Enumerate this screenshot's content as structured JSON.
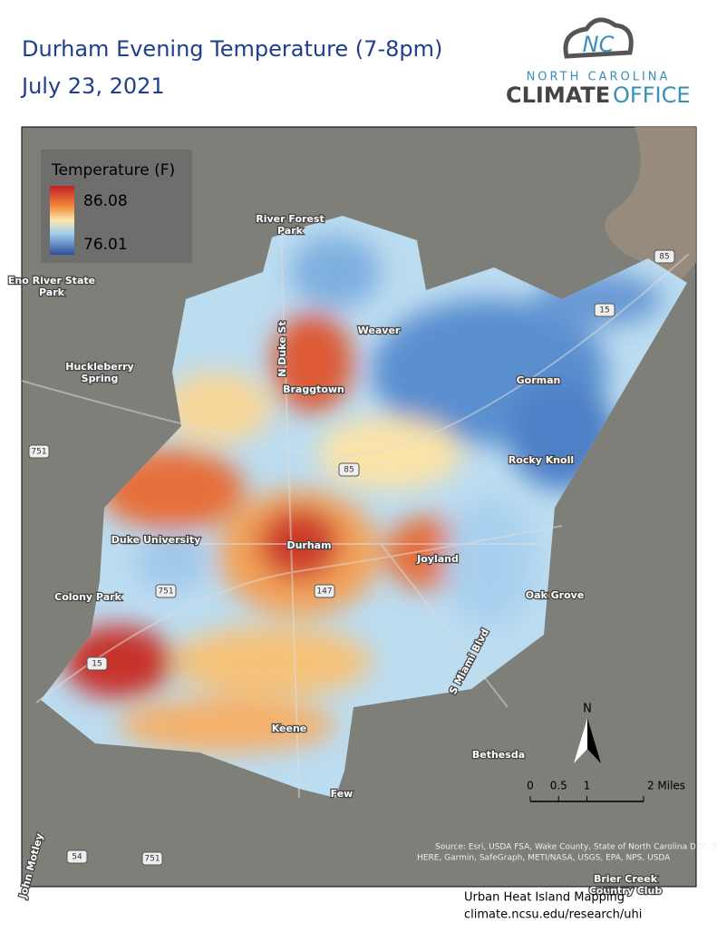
{
  "header": {
    "title": "Durham Evening Temperature (7-8pm)",
    "subtitle": "July 23, 2021"
  },
  "logo": {
    "mark": "NC",
    "line1": "NORTH CAROLINA",
    "bold": "CLIMATE",
    "light": "OFFICE"
  },
  "legend": {
    "title": "Temperature (F)",
    "max": 86.08,
    "min": 76.01
  },
  "places": [
    {
      "lines": [
        "River Forest",
        "Park"
      ]
    },
    {
      "lines": [
        "Eno River State",
        "Park"
      ]
    },
    {
      "lines": [
        "Huckleberry",
        "Spring"
      ]
    },
    {
      "lines": [
        "Weaver"
      ]
    },
    {
      "lines": [
        "Braggtown"
      ]
    },
    {
      "lines": [
        "Gorman"
      ]
    },
    {
      "lines": [
        "Rocky Knoll"
      ]
    },
    {
      "lines": [
        "Duke University"
      ]
    },
    {
      "lines": [
        "Durham"
      ]
    },
    {
      "lines": [
        "Joyland"
      ]
    },
    {
      "lines": [
        "Colony Park"
      ]
    },
    {
      "lines": [
        "Oak Grove"
      ]
    },
    {
      "lines": [
        "Keene"
      ]
    },
    {
      "lines": [
        "Bethesda"
      ]
    },
    {
      "lines": [
        "Few"
      ]
    },
    {
      "lines": [
        "Brier Creek",
        "Country Club"
      ]
    },
    {
      "lines": [
        "N Duke St"
      ]
    },
    {
      "lines": [
        "S Miami Blvd"
      ]
    },
    {
      "lines": [
        "John Motley"
      ]
    }
  ],
  "roads": [
    "85",
    "15",
    "85",
    "751",
    "751",
    "147",
    "15",
    "751",
    "54"
  ],
  "scale": {
    "ticks": [
      0,
      0.5,
      1,
      {
        "value": 2,
        "label": "2 Miles"
      }
    ]
  },
  "north": "N",
  "attribution": [
    "Source: Esri, USDA FSA, Wake County, State of North Carolina DOT, Esri,",
    "HERE, Garmin, SafeGraph, METI/NASA, USGS, EPA, NPS, USDA"
  ],
  "footer": [
    "Urban Heat Island Mapping",
    "climate.ncsu.edu/research/uhi"
  ]
}
